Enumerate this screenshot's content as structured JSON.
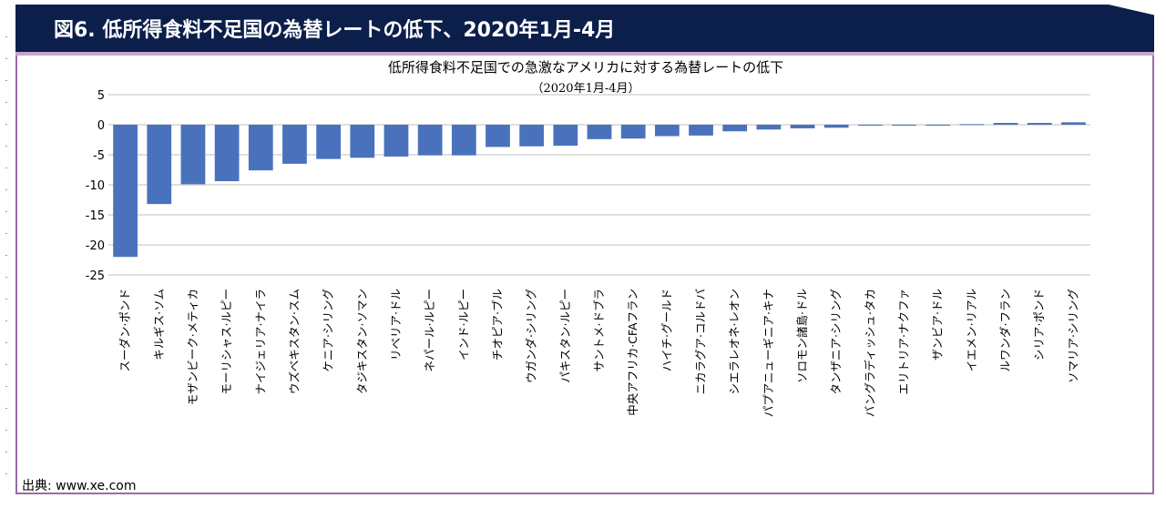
{
  "header": {
    "title": "図6.  低所得食料不足国の為替レートの低下、2020年1月-4月"
  },
  "source": "出典: www.xe.com",
  "chart_data": {
    "type": "bar",
    "title": "低所得食料不足国での急激なアメリカに対する為替レートの低下",
    "subtitle": "（2020年1月-4月）",
    "categories": [
      "スーダン·ポンド",
      "キルギス·ソム",
      "モザンビーク·メティカ",
      "モーリシャス·ルピー",
      "ナイジェリア·ナイラ",
      "ウズベキスタン·スム",
      "ケニア·シリング",
      "タジキスタン·ソマン",
      "リベリア·ドル",
      "ネパール·ルピー",
      "インド·ルピー",
      "チオピア·ブル",
      "ウガンダ·シリング",
      "パキスタン·ルピー",
      "サントメ·ドブラ",
      "中央アフリカ·CFAフラン",
      "ハイチ·グールド",
      "ニカラグア·コルドバ",
      "シエラレオネ·レオン",
      "パプアニューギニア·キナ",
      "ソロモン諸島·ドル",
      "タンザニア·シリング",
      "バングラディッシュ·タカ",
      "エリトリア·ナクファ",
      "ザンビア·ドル",
      "イエメン·リアル",
      "ルワンダ·フラン",
      "シリア·ポンド",
      "ソマリア·シリング"
    ],
    "values": [
      -22.0,
      -13.2,
      -9.9,
      -9.4,
      -7.6,
      -6.5,
      -5.7,
      -5.5,
      -5.3,
      -5.1,
      -5.1,
      -3.7,
      -3.6,
      -3.5,
      -2.4,
      -2.3,
      -1.9,
      -1.8,
      -1.1,
      -0.8,
      -0.6,
      -0.5,
      -0.15,
      -0.1,
      -0.05,
      0.1,
      0.3,
      0.3,
      0.4
    ],
    "yticks": [
      "5",
      "0",
      "-5",
      "-10",
      "-15",
      "-20",
      "-25"
    ],
    "ylim": [
      -25,
      5
    ],
    "grid": true,
    "bar_color": "#4a72bc"
  }
}
